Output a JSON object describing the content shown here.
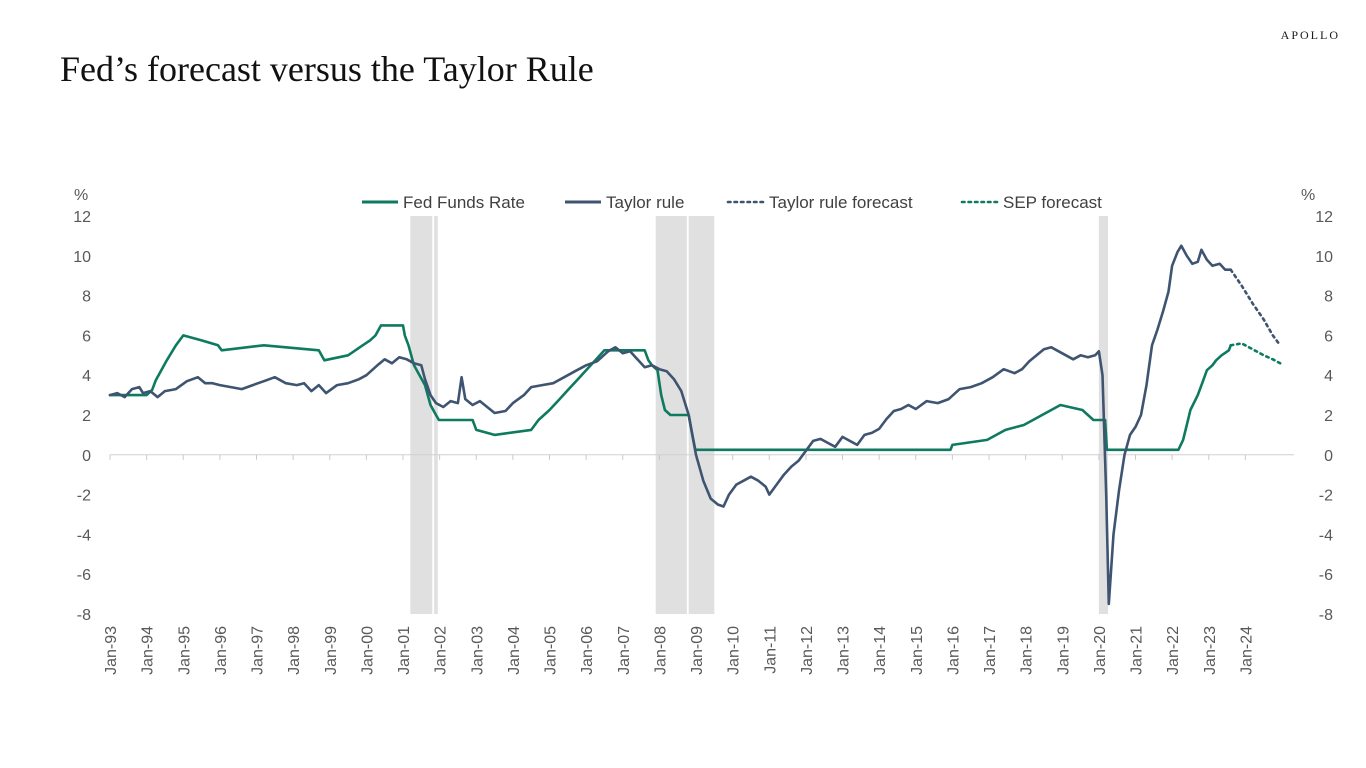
{
  "brand": "APOLLO",
  "title": "Fed’s forecast versus the Taylor Rule",
  "chart_data": {
    "type": "line",
    "title": "Fed’s forecast versus the Taylor Rule",
    "y_unit_left": "%",
    "y_unit_right": "%",
    "ylim": [
      -8,
      12
    ],
    "yticks": [
      12,
      10,
      8,
      6,
      4,
      2,
      0,
      -2,
      -4,
      -6,
      -8
    ],
    "xlim": [
      1993.0,
      2025.0
    ],
    "xtick_labels": [
      "Jan-93",
      "Jan-94",
      "Jan-95",
      "Jan-96",
      "Jan-97",
      "Jan-98",
      "Jan-99",
      "Jan-00",
      "Jan-01",
      "Jan-02",
      "Jan-03",
      "Jan-04",
      "Jan-05",
      "Jan-06",
      "Jan-07",
      "Jan-08",
      "Jan-09",
      "Jan-10",
      "Jan-11",
      "Jan-12",
      "Jan-13",
      "Jan-14",
      "Jan-15",
      "Jan-16",
      "Jan-17",
      "Jan-18",
      "Jan-19",
      "Jan-20",
      "Jan-21",
      "Jan-22",
      "Jan-23",
      "Jan-24"
    ],
    "grid": false,
    "legend_position": "top-center",
    "recessions": [
      [
        2001.2,
        2001.8
      ],
      [
        2001.85,
        2001.95
      ],
      [
        2007.9,
        2008.75
      ],
      [
        2008.8,
        2009.5
      ],
      [
        2020.0,
        2020.25
      ]
    ],
    "colors": {
      "fed_funds": "#0e7a5f",
      "taylor": "#3e5470",
      "recession": "#e0e0e0"
    },
    "series": [
      {
        "name": "Fed Funds Rate",
        "style": "solid",
        "color": "#0e7a5f",
        "points": [
          [
            1993.0,
            3.0
          ],
          [
            1994.0,
            3.0
          ],
          [
            1994.15,
            3.25
          ],
          [
            1994.25,
            3.75
          ],
          [
            1994.4,
            4.25
          ],
          [
            1994.55,
            4.75
          ],
          [
            1994.8,
            5.5
          ],
          [
            1995.0,
            6.0
          ],
          [
            1995.5,
            5.75
          ],
          [
            1995.95,
            5.5
          ],
          [
            1996.05,
            5.25
          ],
          [
            1997.2,
            5.5
          ],
          [
            1998.7,
            5.25
          ],
          [
            1998.85,
            4.75
          ],
          [
            1999.5,
            5.0
          ],
          [
            1999.7,
            5.25
          ],
          [
            1999.9,
            5.5
          ],
          [
            2000.1,
            5.75
          ],
          [
            2000.25,
            6.0
          ],
          [
            2000.4,
            6.5
          ],
          [
            2001.0,
            6.5
          ],
          [
            2001.05,
            6.0
          ],
          [
            2001.15,
            5.5
          ],
          [
            2001.3,
            4.5
          ],
          [
            2001.45,
            4.0
          ],
          [
            2001.6,
            3.5
          ],
          [
            2001.75,
            2.5
          ],
          [
            2001.9,
            2.0
          ],
          [
            2001.98,
            1.75
          ],
          [
            2002.9,
            1.75
          ],
          [
            2003.0,
            1.25
          ],
          [
            2003.5,
            1.0
          ],
          [
            2004.5,
            1.25
          ],
          [
            2004.7,
            1.75
          ],
          [
            2005.0,
            2.25
          ],
          [
            2005.25,
            2.75
          ],
          [
            2005.5,
            3.25
          ],
          [
            2005.75,
            3.75
          ],
          [
            2006.0,
            4.25
          ],
          [
            2006.25,
            4.75
          ],
          [
            2006.5,
            5.25
          ],
          [
            2007.6,
            5.25
          ],
          [
            2007.7,
            4.75
          ],
          [
            2007.8,
            4.5
          ],
          [
            2007.95,
            4.25
          ],
          [
            2008.05,
            3.0
          ],
          [
            2008.15,
            2.25
          ],
          [
            2008.3,
            2.0
          ],
          [
            2008.8,
            2.0
          ],
          [
            2008.9,
            1.0
          ],
          [
            2008.98,
            0.25
          ],
          [
            2015.95,
            0.25
          ],
          [
            2016.0,
            0.5
          ],
          [
            2016.95,
            0.75
          ],
          [
            2017.2,
            1.0
          ],
          [
            2017.45,
            1.25
          ],
          [
            2017.95,
            1.5
          ],
          [
            2018.2,
            1.75
          ],
          [
            2018.45,
            2.0
          ],
          [
            2018.7,
            2.25
          ],
          [
            2018.95,
            2.5
          ],
          [
            2019.55,
            2.25
          ],
          [
            2019.7,
            2.0
          ],
          [
            2019.85,
            1.75
          ],
          [
            2020.17,
            1.75
          ],
          [
            2020.22,
            0.25
          ],
          [
            2022.17,
            0.25
          ],
          [
            2022.3,
            0.75
          ],
          [
            2022.4,
            1.5
          ],
          [
            2022.5,
            2.25
          ],
          [
            2022.7,
            3.0
          ],
          [
            2022.85,
            3.75
          ],
          [
            2022.95,
            4.25
          ],
          [
            2023.1,
            4.5
          ],
          [
            2023.2,
            4.75
          ],
          [
            2023.35,
            5.0
          ],
          [
            2023.55,
            5.25
          ],
          [
            2023.6,
            5.5
          ]
        ]
      },
      {
        "name": "Taylor rule",
        "style": "solid",
        "color": "#3e5470",
        "points": [
          [
            1993.0,
            3.0
          ],
          [
            1993.2,
            3.1
          ],
          [
            1993.4,
            2.9
          ],
          [
            1993.6,
            3.3
          ],
          [
            1993.8,
            3.4
          ],
          [
            1993.9,
            3.1
          ],
          [
            1994.1,
            3.2
          ],
          [
            1994.3,
            2.9
          ],
          [
            1994.5,
            3.2
          ],
          [
            1994.8,
            3.3
          ],
          [
            1995.1,
            3.7
          ],
          [
            1995.4,
            3.9
          ],
          [
            1995.6,
            3.6
          ],
          [
            1995.8,
            3.6
          ],
          [
            1996.0,
            3.5
          ],
          [
            1996.3,
            3.4
          ],
          [
            1996.6,
            3.3
          ],
          [
            1996.9,
            3.5
          ],
          [
            1997.2,
            3.7
          ],
          [
            1997.5,
            3.9
          ],
          [
            1997.8,
            3.6
          ],
          [
            1998.1,
            3.5
          ],
          [
            1998.3,
            3.6
          ],
          [
            1998.5,
            3.2
          ],
          [
            1998.7,
            3.5
          ],
          [
            1998.9,
            3.1
          ],
          [
            1999.2,
            3.5
          ],
          [
            1999.5,
            3.6
          ],
          [
            1999.8,
            3.8
          ],
          [
            2000.0,
            4.0
          ],
          [
            2000.3,
            4.5
          ],
          [
            2000.5,
            4.8
          ],
          [
            2000.7,
            4.6
          ],
          [
            2000.9,
            4.9
          ],
          [
            2001.1,
            4.8
          ],
          [
            2001.3,
            4.6
          ],
          [
            2001.5,
            4.5
          ],
          [
            2001.6,
            3.8
          ],
          [
            2001.75,
            3.0
          ],
          [
            2001.9,
            2.6
          ],
          [
            2002.1,
            2.4
          ],
          [
            2002.3,
            2.7
          ],
          [
            2002.5,
            2.6
          ],
          [
            2002.6,
            3.9
          ],
          [
            2002.7,
            2.8
          ],
          [
            2002.9,
            2.5
          ],
          [
            2003.1,
            2.7
          ],
          [
            2003.3,
            2.4
          ],
          [
            2003.5,
            2.1
          ],
          [
            2003.8,
            2.2
          ],
          [
            2004.0,
            2.6
          ],
          [
            2004.3,
            3.0
          ],
          [
            2004.5,
            3.4
          ],
          [
            2004.8,
            3.5
          ],
          [
            2005.1,
            3.6
          ],
          [
            2005.4,
            3.9
          ],
          [
            2005.7,
            4.2
          ],
          [
            2006.0,
            4.5
          ],
          [
            2006.3,
            4.7
          ],
          [
            2006.6,
            5.2
          ],
          [
            2006.8,
            5.4
          ],
          [
            2007.0,
            5.1
          ],
          [
            2007.2,
            5.2
          ],
          [
            2007.4,
            4.8
          ],
          [
            2007.6,
            4.4
          ],
          [
            2007.8,
            4.5
          ],
          [
            2008.0,
            4.3
          ],
          [
            2008.2,
            4.2
          ],
          [
            2008.4,
            3.8
          ],
          [
            2008.6,
            3.2
          ],
          [
            2008.8,
            2.0
          ],
          [
            2009.0,
            0.0
          ],
          [
            2009.2,
            -1.3
          ],
          [
            2009.4,
            -2.2
          ],
          [
            2009.6,
            -2.5
          ],
          [
            2009.75,
            -2.6
          ],
          [
            2009.9,
            -2.0
          ],
          [
            2010.1,
            -1.5
          ],
          [
            2010.3,
            -1.3
          ],
          [
            2010.5,
            -1.1
          ],
          [
            2010.7,
            -1.3
          ],
          [
            2010.9,
            -1.6
          ],
          [
            2011.0,
            -2.0
          ],
          [
            2011.2,
            -1.5
          ],
          [
            2011.4,
            -1.0
          ],
          [
            2011.6,
            -0.6
          ],
          [
            2011.8,
            -0.3
          ],
          [
            2012.0,
            0.2
          ],
          [
            2012.2,
            0.7
          ],
          [
            2012.4,
            0.8
          ],
          [
            2012.6,
            0.6
          ],
          [
            2012.8,
            0.4
          ],
          [
            2013.0,
            0.9
          ],
          [
            2013.2,
            0.7
          ],
          [
            2013.4,
            0.5
          ],
          [
            2013.6,
            1.0
          ],
          [
            2013.8,
            1.1
          ],
          [
            2014.0,
            1.3
          ],
          [
            2014.2,
            1.8
          ],
          [
            2014.4,
            2.2
          ],
          [
            2014.6,
            2.3
          ],
          [
            2014.8,
            2.5
          ],
          [
            2015.0,
            2.3
          ],
          [
            2015.3,
            2.7
          ],
          [
            2015.6,
            2.6
          ],
          [
            2015.9,
            2.8
          ],
          [
            2016.2,
            3.3
          ],
          [
            2016.5,
            3.4
          ],
          [
            2016.8,
            3.6
          ],
          [
            2017.1,
            3.9
          ],
          [
            2017.4,
            4.3
          ],
          [
            2017.7,
            4.1
          ],
          [
            2017.9,
            4.3
          ],
          [
            2018.1,
            4.7
          ],
          [
            2018.3,
            5.0
          ],
          [
            2018.5,
            5.3
          ],
          [
            2018.7,
            5.4
          ],
          [
            2018.9,
            5.2
          ],
          [
            2019.1,
            5.0
          ],
          [
            2019.3,
            4.8
          ],
          [
            2019.5,
            5.0
          ],
          [
            2019.7,
            4.9
          ],
          [
            2019.9,
            5.0
          ],
          [
            2020.0,
            5.2
          ],
          [
            2020.1,
            4.0
          ],
          [
            2020.2,
            -2.0
          ],
          [
            2020.27,
            -7.5
          ],
          [
            2020.4,
            -4.0
          ],
          [
            2020.55,
            -1.8
          ],
          [
            2020.7,
            0.0
          ],
          [
            2020.85,
            1.0
          ],
          [
            2021.0,
            1.4
          ],
          [
            2021.15,
            2.0
          ],
          [
            2021.3,
            3.5
          ],
          [
            2021.45,
            5.5
          ],
          [
            2021.6,
            6.3
          ],
          [
            2021.75,
            7.2
          ],
          [
            2021.9,
            8.2
          ],
          [
            2022.0,
            9.5
          ],
          [
            2022.15,
            10.2
          ],
          [
            2022.25,
            10.5
          ],
          [
            2022.4,
            10.0
          ],
          [
            2022.55,
            9.6
          ],
          [
            2022.7,
            9.7
          ],
          [
            2022.8,
            10.3
          ],
          [
            2022.95,
            9.8
          ],
          [
            2023.1,
            9.5
          ],
          [
            2023.3,
            9.6
          ],
          [
            2023.45,
            9.3
          ],
          [
            2023.6,
            9.3
          ]
        ]
      },
      {
        "name": "Taylor rule forecast",
        "style": "dotted",
        "color": "#3e5470",
        "points": [
          [
            2023.6,
            9.3
          ],
          [
            2023.9,
            8.5
          ],
          [
            2024.2,
            7.6
          ],
          [
            2024.5,
            6.8
          ],
          [
            2024.75,
            6.0
          ],
          [
            2024.95,
            5.5
          ]
        ]
      },
      {
        "name": "SEP forecast",
        "style": "dotted",
        "color": "#0e7a5f",
        "points": [
          [
            2023.6,
            5.5
          ],
          [
            2023.9,
            5.6
          ],
          [
            2024.2,
            5.3
          ],
          [
            2024.5,
            5.0
          ],
          [
            2024.75,
            4.8
          ],
          [
            2024.95,
            4.6
          ]
        ]
      }
    ]
  }
}
